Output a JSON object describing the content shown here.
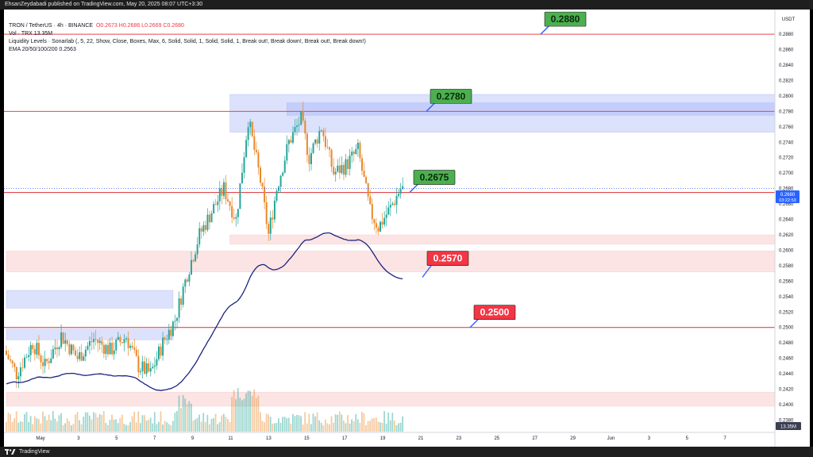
{
  "header": {
    "publisher_line": "EhsanZeydabadi published on TradingView.com, May 20, 2025 08:07 UTC+3:30"
  },
  "legend": {
    "line1_symbol": "TRON / TetherUS · 4h · BINANCE",
    "line1_ohlc": "O0.2673  H0.2686  L0.2669  C0.2680",
    "line2": "Vol · TRX  13.35M",
    "line3": "Liquidity Levels · Sonarlab (, 5, 22, Show, Close, Boxes, Max, 6, Solid, Solid, 1, Solid, Solid, 1, Break out!, Break down!, Break out!, Break down!)",
    "line4": "EMA 20/50/100/200  0.2563"
  },
  "footer": {
    "brand": "TradingView"
  },
  "colors": {
    "up": "#26a69a",
    "down": "#e8892c",
    "ema": "#1a237e",
    "level_line": "#e5464c",
    "resistance_box": "#9ba8f5",
    "support_box": "#f6b3b3",
    "callout_green": "#4caf50",
    "callout_red": "#f23645"
  },
  "chart_data": {
    "type": "candlestick",
    "symbol": "TRX/USDT",
    "timeframe": "4h",
    "y_axis_title": "USDT",
    "ylim": [
      0.2364,
      0.2912
    ],
    "y_ticks": [
      "0.2900",
      "0.2880",
      "0.2860",
      "0.2840",
      "0.2820",
      "0.2800",
      "0.2780",
      "0.2760",
      "0.2740",
      "0.2720",
      "0.2700",
      "0.2680",
      "0.2660",
      "0.2640",
      "0.2620",
      "0.2600",
      "0.2580",
      "0.2560",
      "0.2540",
      "0.2520",
      "0.2500",
      "0.2480",
      "0.2460",
      "0.2440",
      "0.2420",
      "0.2400",
      "0.2380"
    ],
    "x_ticks": [
      "May",
      "3",
      "5",
      "7",
      "9",
      "11",
      "13",
      "15",
      "17",
      "19",
      "21",
      "23",
      "25",
      "27",
      "29",
      "Jun",
      "3",
      "5",
      "7"
    ],
    "last_price": "0.2680",
    "countdown": "03:22:53",
    "volume_label": "13.35M",
    "ema200_last": 0.2563,
    "price_levels": [
      0.288,
      0.278,
      0.2675,
      0.25
    ],
    "callouts": [
      {
        "label": "0.2880",
        "price": 0.288,
        "color": "green"
      },
      {
        "label": "0.2780",
        "price": 0.278,
        "color": "green"
      },
      {
        "label": "0.2675",
        "price": 0.2675,
        "color": "green"
      },
      {
        "label": "0.2570",
        "price": 0.257,
        "color": "red"
      },
      {
        "label": "0.2500",
        "price": 0.25,
        "color": "red"
      }
    ],
    "zones": [
      {
        "kind": "resistance",
        "from_candle": 110,
        "to_candle": "end",
        "top": 0.2802,
        "bottom": 0.2753
      },
      {
        "kind": "resistance",
        "from_candle": 138,
        "to_candle": "end",
        "top": 0.2791,
        "bottom": 0.2775
      },
      {
        "kind": "support",
        "from_candle": 110,
        "to_candle": "end",
        "top": 0.262,
        "bottom": 0.2608
      },
      {
        "kind": "support",
        "from_candle": 0,
        "to_candle": "end",
        "top": 0.2599,
        "bottom": 0.2572
      },
      {
        "kind": "resistance",
        "from_candle": 0,
        "to_candle": 82,
        "top": 0.2548,
        "bottom": 0.2525
      },
      {
        "kind": "resistance",
        "from_candle": 0,
        "to_candle": 82,
        "top": 0.2498,
        "bottom": 0.2484
      },
      {
        "kind": "support",
        "from_candle": 0,
        "to_candle": "end",
        "top": 0.2416,
        "bottom": 0.2398
      }
    ],
    "waypoints": [
      [
        0,
        0.247
      ],
      [
        6,
        0.244
      ],
      [
        14,
        0.248
      ],
      [
        20,
        0.245
      ],
      [
        28,
        0.249
      ],
      [
        36,
        0.246
      ],
      [
        44,
        0.2485
      ],
      [
        52,
        0.247
      ],
      [
        60,
        0.2488
      ],
      [
        66,
        0.245
      ],
      [
        72,
        0.244
      ],
      [
        78,
        0.248
      ],
      [
        84,
        0.251
      ],
      [
        90,
        0.257
      ],
      [
        96,
        0.262
      ],
      [
        102,
        0.265
      ],
      [
        108,
        0.268
      ],
      [
        114,
        0.264
      ],
      [
        120,
        0.277
      ],
      [
        126,
        0.269
      ],
      [
        130,
        0.262
      ],
      [
        134,
        0.268
      ],
      [
        140,
        0.274
      ],
      [
        146,
        0.277
      ],
      [
        150,
        0.272
      ],
      [
        156,
        0.276
      ],
      [
        162,
        0.27
      ],
      [
        168,
        0.271
      ],
      [
        174,
        0.273
      ],
      [
        180,
        0.265
      ],
      [
        184,
        0.263
      ],
      [
        190,
        0.2655
      ],
      [
        195,
        0.268
      ]
    ]
  }
}
